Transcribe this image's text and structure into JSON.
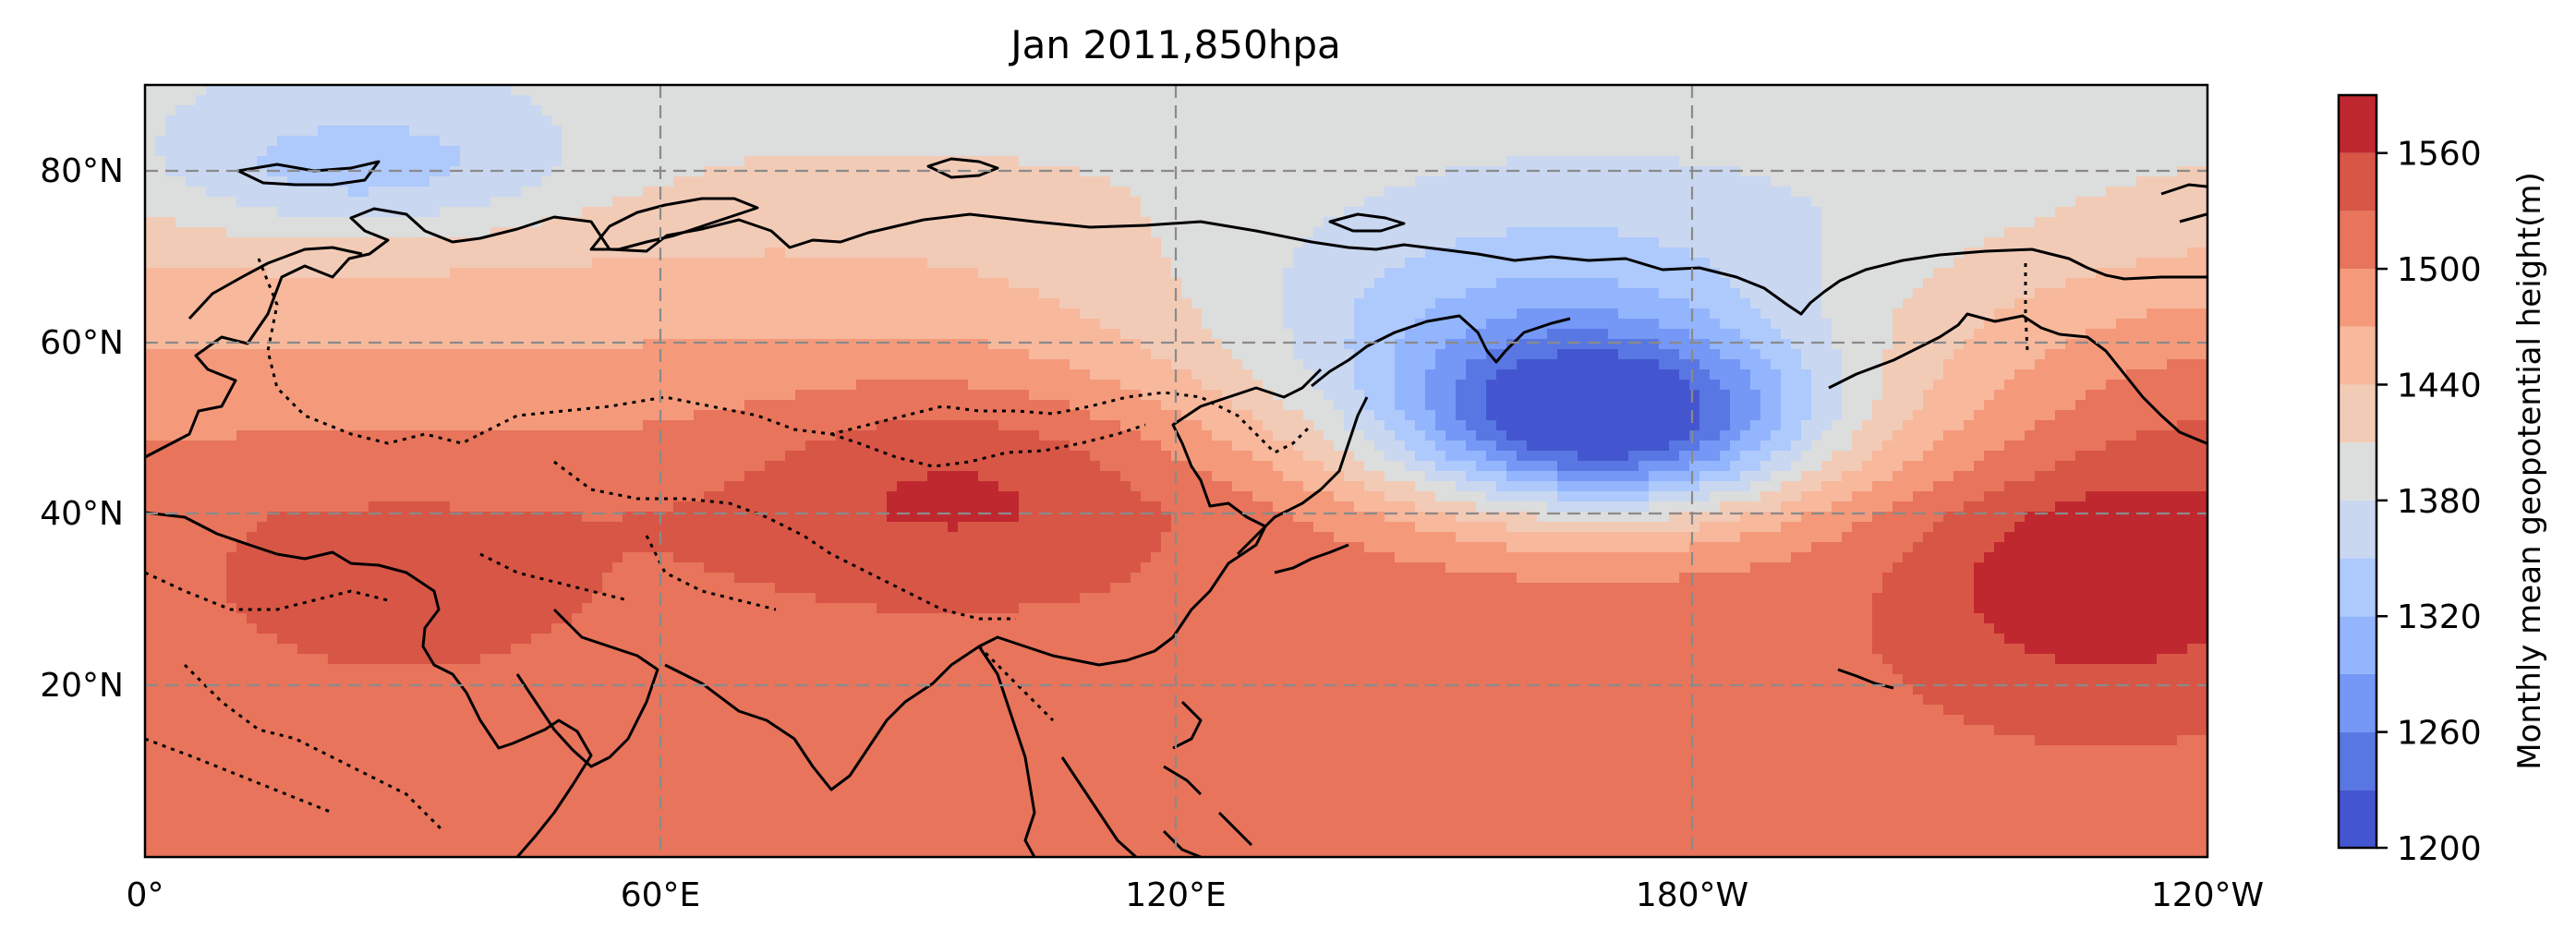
{
  "title": "Jan 2011,850hpa",
  "axes": {
    "x_ticks": [
      "0°",
      "60°E",
      "120°E",
      "180°W",
      "120°W"
    ],
    "y_ticks": [
      "20°N",
      "40°N",
      "60°N",
      "80°N"
    ]
  },
  "colorbar": {
    "label": "Monthly mean geopotential height(m)",
    "tick_labels": [
      "1200",
      "1260",
      "1320",
      "1380",
      "1440",
      "1500",
      "1560"
    ],
    "levels": [
      1200,
      1230,
      1260,
      1290,
      1320,
      1350,
      1380,
      1410,
      1440,
      1470,
      1500,
      1530,
      1560,
      1590
    ],
    "colors": [
      "#4356d0",
      "#5977e3",
      "#7597f6",
      "#93b5fe",
      "#aec9fc",
      "#c9d7f0",
      "#dcdddd",
      "#f2cbb7",
      "#f7b89c",
      "#f49a7b",
      "#e7745b",
      "#d85646",
      "#c0282f"
    ]
  },
  "chart_data": {
    "type": "contour_map",
    "variable": "Monthly mean geopotential height",
    "units": "m",
    "level": "850hpa",
    "date": "Jan 2011",
    "lon_range": [
      0,
      240
    ],
    "lat_range": [
      0,
      90
    ],
    "clim": [
      1200,
      1590
    ],
    "features": [
      {
        "name": "low",
        "lon": 170,
        "lat": 50,
        "value": 1205
      },
      {
        "name": "high",
        "lon": 97,
        "lat": 48,
        "value": 1575
      },
      {
        "name": "high",
        "lon": 230,
        "lat": 32,
        "value": 1575
      },
      {
        "name": "high",
        "lon": 88,
        "lat": 38,
        "value": 1545
      },
      {
        "name": "low",
        "lon": 30,
        "lat": 78,
        "value": 1275
      }
    ]
  }
}
